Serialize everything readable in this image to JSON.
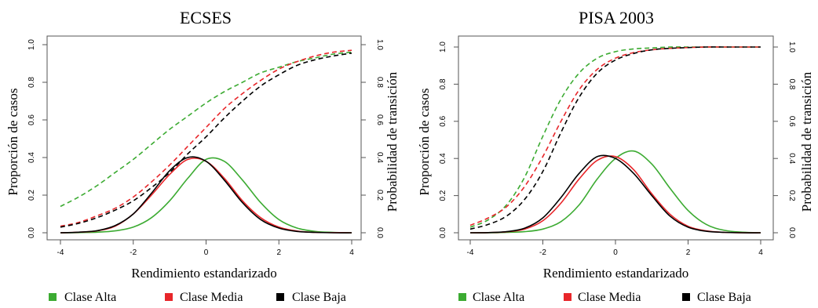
{
  "chart_data": [
    {
      "type": "line",
      "title": "ECSES",
      "xlabel": "Rendimiento estandarizado",
      "ylabel": "Proporción de casos",
      "ylabel_right": "Probabilidad de transición",
      "xlim": [
        -4,
        4
      ],
      "ylim": [
        0,
        1
      ],
      "x_ticks": [
        "-4",
        "-2",
        "0",
        "2",
        "4"
      ],
      "y_ticks": [
        "0.0",
        "0.2",
        "0.4",
        "0.6",
        "0.8",
        "1.0"
      ],
      "x": [
        -4,
        -3.5,
        -3,
        -2.5,
        -2,
        -1.5,
        -1,
        -0.5,
        0,
        0.5,
        1,
        1.5,
        2,
        2.5,
        3,
        3.5,
        4
      ],
      "series": [
        {
          "name": "Clase Alta",
          "style": "solid",
          "color": "#3cab32",
          "values": [
            0.0,
            0.001,
            0.003,
            0.01,
            0.03,
            0.08,
            0.17,
            0.29,
            0.39,
            0.38,
            0.28,
            0.16,
            0.07,
            0.025,
            0.007,
            0.002,
            0.0
          ]
        },
        {
          "name": "Clase Media",
          "style": "solid",
          "color": "#e8262a",
          "values": [
            0.0,
            0.003,
            0.01,
            0.035,
            0.1,
            0.2,
            0.31,
            0.39,
            0.38,
            0.29,
            0.17,
            0.08,
            0.03,
            0.009,
            0.002,
            0.001,
            0.0
          ]
        },
        {
          "name": "Clase Baja",
          "style": "solid",
          "color": "#000000",
          "values": [
            0.0,
            0.003,
            0.011,
            0.038,
            0.1,
            0.21,
            0.33,
            0.4,
            0.38,
            0.28,
            0.16,
            0.07,
            0.025,
            0.007,
            0.002,
            0.0,
            0.0
          ]
        },
        {
          "name": "Clase Alta",
          "style": "dashed",
          "color": "#3cab32",
          "values": [
            0.14,
            0.19,
            0.25,
            0.32,
            0.39,
            0.47,
            0.55,
            0.62,
            0.69,
            0.75,
            0.8,
            0.85,
            0.88,
            0.91,
            0.93,
            0.95,
            0.96
          ]
        },
        {
          "name": "Clase Media",
          "style": "dashed",
          "color": "#e8262a",
          "values": [
            0.035,
            0.055,
            0.09,
            0.13,
            0.19,
            0.27,
            0.36,
            0.46,
            0.56,
            0.66,
            0.74,
            0.81,
            0.87,
            0.91,
            0.94,
            0.96,
            0.97
          ]
        },
        {
          "name": "Clase Baja",
          "style": "dashed",
          "color": "#000000",
          "values": [
            0.03,
            0.05,
            0.08,
            0.12,
            0.17,
            0.24,
            0.32,
            0.42,
            0.51,
            0.61,
            0.7,
            0.78,
            0.84,
            0.89,
            0.92,
            0.94,
            0.955
          ]
        }
      ]
    },
    {
      "type": "line",
      "title": "PISA 2003",
      "xlabel": "Rendimiento estandarizado",
      "ylabel": "Proporción de casos",
      "ylabel_right": "Probabilidad de transición",
      "xlim": [
        -4,
        4
      ],
      "ylim": [
        0,
        1
      ],
      "x_ticks": [
        "-4",
        "-2",
        "0",
        "2",
        "4"
      ],
      "y_ticks": [
        "0.0",
        "0.2",
        "0.4",
        "0.6",
        "0.8",
        "1.0"
      ],
      "x": [
        -4,
        -3.5,
        -3,
        -2.5,
        -2,
        -1.5,
        -1,
        -0.5,
        0,
        0.5,
        1,
        1.5,
        2,
        2.5,
        3,
        3.5,
        4
      ],
      "series": [
        {
          "name": "Clase Alta",
          "style": "solid",
          "color": "#3cab32",
          "values": [
            0.0,
            0.0,
            0.002,
            0.006,
            0.02,
            0.06,
            0.15,
            0.29,
            0.4,
            0.44,
            0.37,
            0.24,
            0.12,
            0.045,
            0.013,
            0.003,
            0.0
          ]
        },
        {
          "name": "Clase Media",
          "style": "solid",
          "color": "#e8262a",
          "values": [
            0.0,
            0.001,
            0.005,
            0.02,
            0.065,
            0.16,
            0.29,
            0.39,
            0.41,
            0.34,
            0.21,
            0.1,
            0.035,
            0.01,
            0.002,
            0.0,
            0.0
          ]
        },
        {
          "name": "Clase Baja",
          "style": "solid",
          "color": "#000000",
          "values": [
            0.0,
            0.001,
            0.006,
            0.025,
            0.08,
            0.19,
            0.32,
            0.41,
            0.4,
            0.32,
            0.2,
            0.09,
            0.03,
            0.008,
            0.002,
            0.0,
            0.0
          ]
        },
        {
          "name": "Clase Alta",
          "style": "dashed",
          "color": "#3cab32",
          "values": [
            0.03,
            0.07,
            0.15,
            0.3,
            0.52,
            0.72,
            0.86,
            0.94,
            0.975,
            0.99,
            0.995,
            1.0,
            1.0,
            1.0,
            1.0,
            1.0,
            1.0
          ]
        },
        {
          "name": "Clase Media",
          "style": "dashed",
          "color": "#e8262a",
          "values": [
            0.04,
            0.08,
            0.14,
            0.25,
            0.41,
            0.6,
            0.77,
            0.88,
            0.94,
            0.97,
            0.985,
            0.993,
            0.997,
            1.0,
            1.0,
            1.0,
            1.0
          ]
        },
        {
          "name": "Clase Baja",
          "style": "dashed",
          "color": "#000000",
          "values": [
            0.02,
            0.045,
            0.09,
            0.18,
            0.33,
            0.54,
            0.73,
            0.86,
            0.93,
            0.965,
            0.985,
            0.993,
            0.997,
            1.0,
            1.0,
            1.0,
            1.0
          ]
        }
      ]
    }
  ],
  "legend": [
    {
      "label": "Clase Alta",
      "color": "#3cab32"
    },
    {
      "label": "Clase Media",
      "color": "#e8262a"
    },
    {
      "label": "Clase Baja",
      "color": "#000000"
    }
  ]
}
